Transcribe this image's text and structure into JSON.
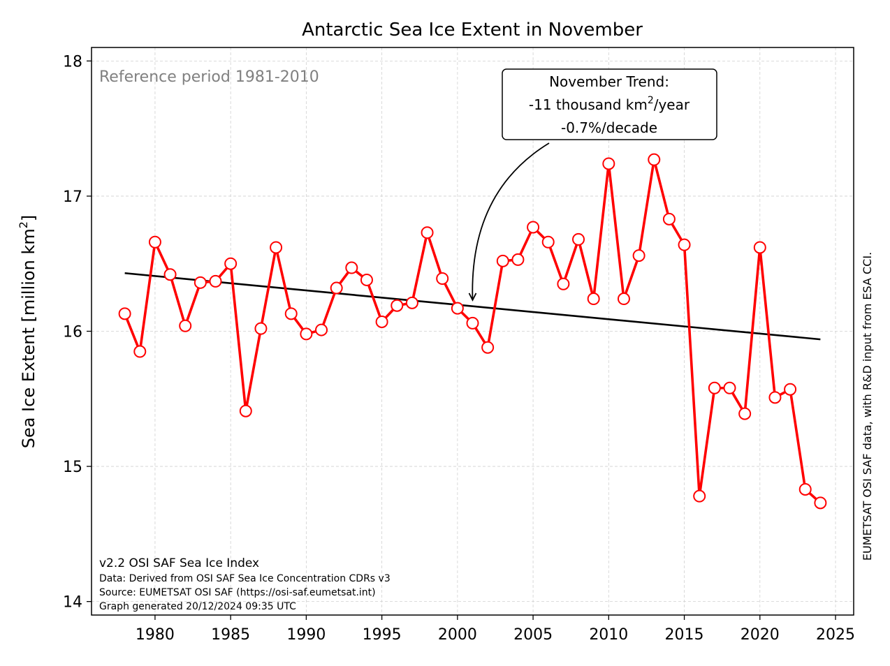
{
  "chart_data": {
    "type": "line",
    "title": "Antarctic Sea Ice Extent in November",
    "ylabel_main": "Sea Ice Extent [million km",
    "ylabel_sup": "2",
    "ylabel_tail": "]",
    "xlim": [
      1975.8,
      2026.2
    ],
    "ylim": [
      13.9,
      18.1
    ],
    "xticks": [
      1980,
      1985,
      1990,
      1995,
      2000,
      2005,
      2010,
      2015,
      2020,
      2025
    ],
    "yticks": [
      14,
      15,
      16,
      17,
      18
    ],
    "grid": true,
    "reference_text": "Reference period 1981-2010",
    "series": [
      {
        "color": "#ff0000",
        "x": [
          1978,
          1979,
          1980,
          1981,
          1982,
          1983,
          1984,
          1985,
          1986,
          1987,
          1988,
          1989,
          1990,
          1991,
          1992,
          1993,
          1994,
          1995,
          1996,
          1997,
          1998,
          1999,
          2000,
          2001,
          2002,
          2003,
          2004,
          2005,
          2006,
          2007,
          2008,
          2009,
          2010,
          2011,
          2012,
          2013,
          2014,
          2015,
          2016,
          2017,
          2018,
          2019,
          2020,
          2021,
          2022,
          2023,
          2024
        ],
        "y": [
          16.13,
          15.85,
          16.66,
          16.42,
          16.04,
          16.36,
          16.37,
          16.5,
          15.41,
          16.02,
          16.62,
          16.13,
          15.98,
          16.01,
          16.32,
          16.47,
          16.38,
          16.07,
          16.19,
          16.21,
          16.73,
          16.39,
          16.17,
          16.06,
          15.88,
          16.52,
          16.53,
          16.77,
          16.66,
          16.35,
          16.68,
          16.24,
          17.24,
          16.24,
          16.56,
          17.27,
          16.83,
          16.64,
          14.78,
          15.58,
          15.58,
          15.39,
          16.62,
          15.51,
          15.57,
          14.83,
          14.73
        ]
      }
    ],
    "trend": {
      "color": "#000000",
      "x": [
        1978,
        2024
      ],
      "y": [
        16.43,
        15.94
      ]
    },
    "annotation": {
      "line1": "November Trend:",
      "line2_main": "-11 thousand km",
      "line2_sup": "2",
      "line2_tail": "/year",
      "line3": "-0.7%/decade",
      "arrow_target": [
        2001,
        16.22
      ]
    },
    "footer": {
      "line1": "v2.2 OSI SAF Sea Ice Index",
      "line2": "Data: Derived from OSI SAF Sea Ice Concentration CDRs v3",
      "line3": "Source: EUMETSAT OSI SAF (https://osi-saf.eumetsat.int)",
      "line4": "Graph generated 20/12/2024 09:35 UTC"
    },
    "side_text": "EUMETSAT OSI SAF data, with R&D input from ESA CCI."
  }
}
